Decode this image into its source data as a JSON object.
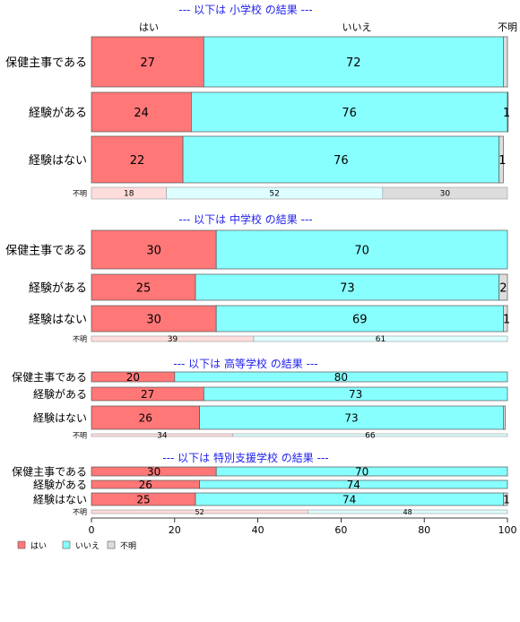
{
  "colors": {
    "yes": "#ff7777",
    "no": "#88ffff",
    "unknown": "#dddddd",
    "title": "#2222ee",
    "yes_light": "#ffdddd",
    "no_light": "#ddffff",
    "unknown_light": "#dddddd"
  },
  "top_labels": [
    "はい",
    "いいえ",
    "不明"
  ],
  "legend": [
    "はい",
    "いいえ",
    "不明"
  ],
  "chart_data": {
    "type": "bar",
    "orientation": "horizontal-stacked",
    "xlim": [
      0,
      100
    ],
    "xticks": [
      0,
      20,
      40,
      60,
      80,
      100
    ],
    "series_names": [
      "はい",
      "いいえ",
      "不明"
    ],
    "panels": [
      {
        "title": "--- 以下は 小学校 の結果 ---",
        "rows": [
          {
            "label": "保健主事である",
            "values": [
              27,
              72,
              1
            ],
            "labels": [
              "27",
              "72",
              ""
            ]
          },
          {
            "label": "経験がある",
            "values": [
              24,
              76,
              1
            ],
            "labels": [
              "24",
              "76",
              "1"
            ]
          },
          {
            "label": "経験はない",
            "values": [
              22,
              76,
              1
            ],
            "labels": [
              "22",
              "76",
              "1"
            ]
          }
        ],
        "fumei": {
          "label": "不明",
          "values": [
            18,
            52,
            30
          ],
          "labels": [
            "18",
            "52",
            "30"
          ]
        }
      },
      {
        "title": "--- 以下は 中学校 の結果 ---",
        "rows": [
          {
            "label": "保健主事である",
            "values": [
              30,
              70,
              0
            ],
            "labels": [
              "30",
              "70",
              ""
            ]
          },
          {
            "label": "経験がある",
            "values": [
              25,
              73,
              2
            ],
            "labels": [
              "25",
              "73",
              "2"
            ]
          },
          {
            "label": "経験はない",
            "values": [
              30,
              69,
              1
            ],
            "labels": [
              "30",
              "69",
              "1"
            ]
          }
        ],
        "fumei": {
          "label": "不明",
          "values": [
            39,
            61,
            0
          ],
          "labels": [
            "39",
            "61",
            ""
          ]
        }
      },
      {
        "title": "--- 以下は 高等学校 の結果 ---",
        "rows": [
          {
            "label": "保健主事である",
            "values": [
              20,
              80,
              0
            ],
            "labels": [
              "20",
              "80",
              ""
            ]
          },
          {
            "label": "経験がある",
            "values": [
              27,
              73,
              0
            ],
            "labels": [
              "27",
              "73",
              ""
            ]
          },
          {
            "label": "経験はない",
            "values": [
              26,
              73,
              0.5
            ],
            "labels": [
              "26",
              "73",
              ""
            ]
          }
        ],
        "fumei": {
          "label": "不明",
          "values": [
            34,
            66,
            0
          ],
          "labels": [
            "34",
            "66",
            ""
          ]
        }
      },
      {
        "title": "--- 以下は 特別支援学校 の結果 ---",
        "rows": [
          {
            "label": "保健主事である",
            "values": [
              30,
              70,
              0
            ],
            "labels": [
              "30",
              "70",
              ""
            ]
          },
          {
            "label": "経験がある",
            "values": [
              26,
              74,
              0
            ],
            "labels": [
              "26",
              "74",
              ""
            ]
          },
          {
            "label": "経験はない",
            "values": [
              25,
              74,
              1
            ],
            "labels": [
              "25",
              "74",
              "1"
            ]
          }
        ],
        "fumei": {
          "label": "不明",
          "values": [
            52,
            48,
            0
          ],
          "labels": [
            "52",
            "48",
            ""
          ]
        }
      }
    ]
  }
}
